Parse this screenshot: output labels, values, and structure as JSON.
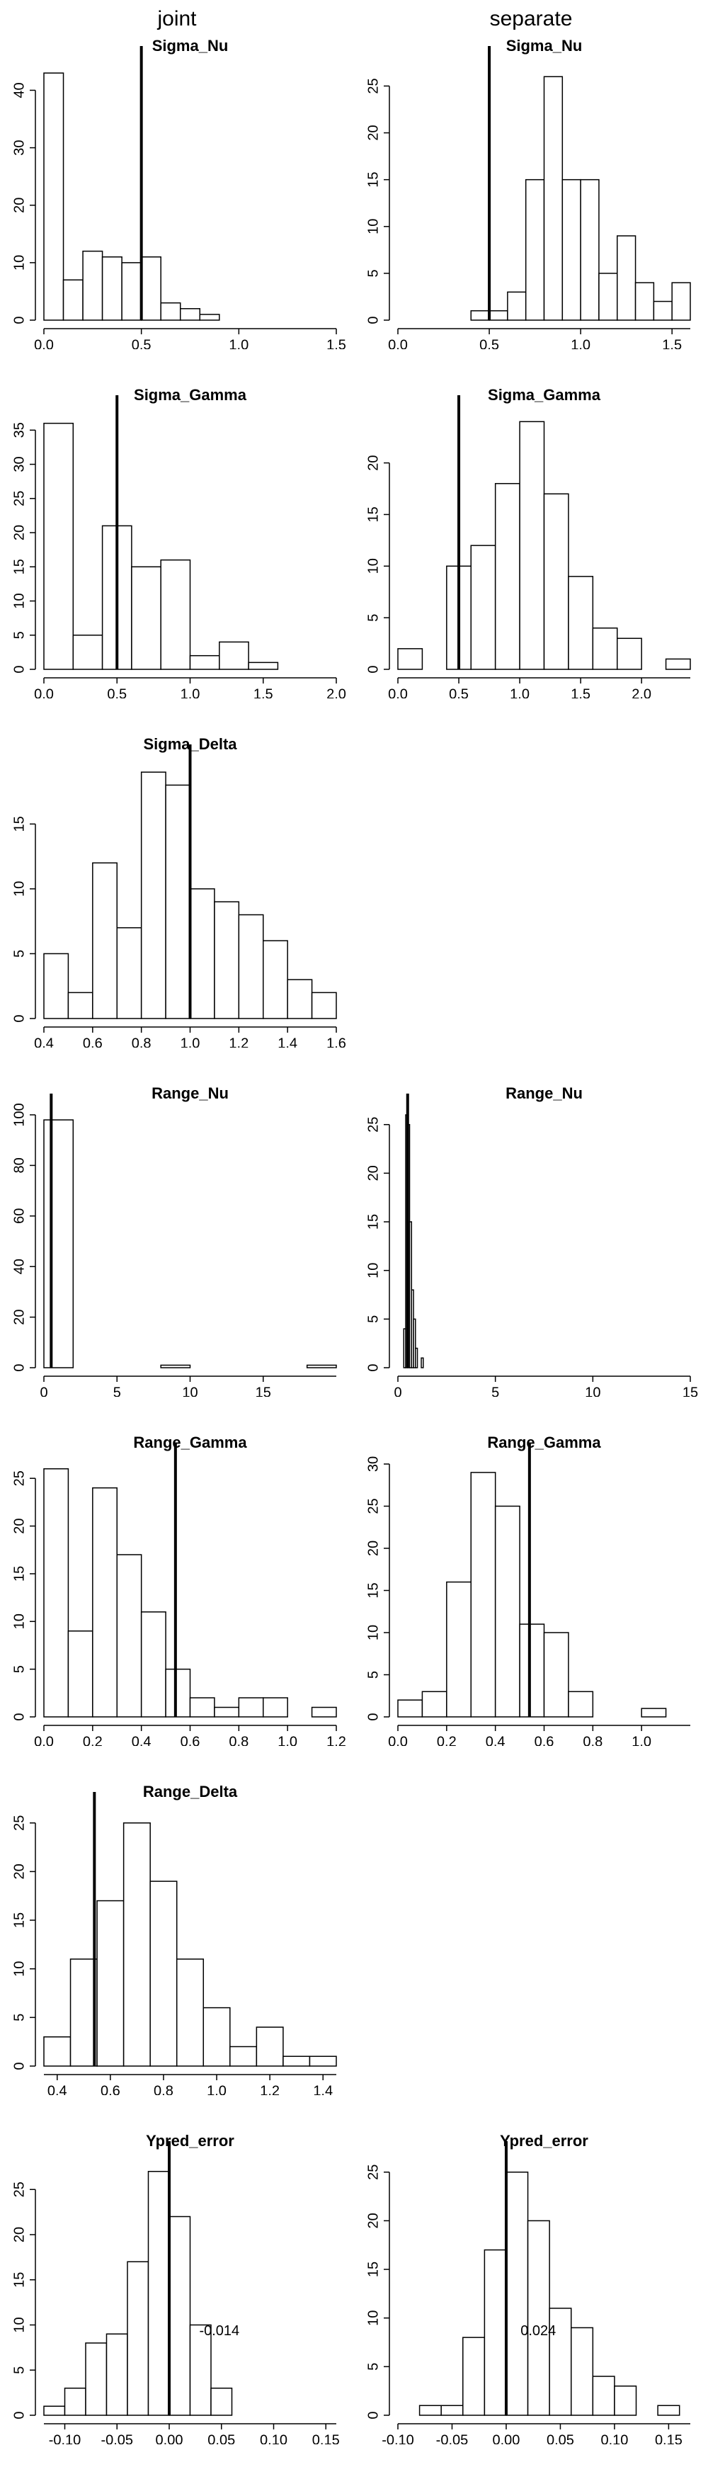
{
  "column_headers": [
    "joint",
    "separate"
  ],
  "chart_data": [
    {
      "type": "histogram",
      "title": "Sigma_Nu",
      "bins": [
        0,
        0.1,
        0.2,
        0.3,
        0.4,
        0.5,
        0.6,
        0.7,
        0.8,
        0.9
      ],
      "counts": [
        43,
        7,
        12,
        11,
        10,
        11,
        3,
        2,
        1
      ],
      "reference_line": 0.5,
      "xlim": [
        0,
        1.5
      ],
      "xticks": [
        {
          "value": 0,
          "label": "0.0"
        },
        0.5,
        {
          "value": 1,
          "label": "1.0"
        },
        1.5
      ],
      "ylim": [
        0,
        44
      ],
      "yticks": [
        0,
        10,
        20,
        30,
        40
      ]
    },
    {
      "type": "histogram",
      "title": "Sigma_Nu",
      "bins": [
        0.4,
        0.5,
        0.6,
        0.7,
        0.8,
        0.9,
        1.0,
        1.1,
        1.2,
        1.3,
        1.4,
        1.5,
        1.6
      ],
      "counts": [
        1,
        1,
        3,
        15,
        26,
        15,
        15,
        5,
        9,
        4,
        2,
        4
      ],
      "reference_line": 0.5,
      "xlim": [
        0,
        1.6
      ],
      "xticks": [
        {
          "value": 0,
          "label": "0.0"
        },
        0.5,
        {
          "value": 1,
          "label": "1.0"
        },
        1.5
      ],
      "ylim": [
        0,
        27
      ],
      "yticks": [
        0,
        5,
        10,
        15,
        20,
        25
      ]
    },
    {
      "type": "histogram",
      "title": "Sigma_Gamma",
      "bins": [
        0,
        0.2,
        0.4,
        0.6,
        0.8,
        1.0,
        1.2,
        1.4,
        1.6
      ],
      "counts": [
        36,
        5,
        21,
        15,
        16,
        2,
        4,
        1
      ],
      "reference_line": 0.5,
      "xlim": [
        0,
        2
      ],
      "xticks": [
        {
          "value": 0,
          "label": "0.0"
        },
        0.5,
        {
          "value": 1,
          "label": "1.0"
        },
        1.5,
        {
          "value": 2,
          "label": "2.0"
        }
      ],
      "ylim": [
        0,
        37
      ],
      "yticks": [
        0,
        5,
        10,
        15,
        20,
        25,
        30,
        35
      ]
    },
    {
      "type": "histogram",
      "title": "Sigma_Gamma",
      "bins": [
        0,
        0.2,
        0.4,
        0.6,
        0.8,
        1.0,
        1.2,
        1.4,
        1.6,
        1.8,
        2.0,
        2.2,
        2.4
      ],
      "counts": [
        2,
        0,
        10,
        12,
        18,
        24,
        17,
        9,
        4,
        3,
        0,
        1
      ],
      "reference_line": 0.5,
      "xlim": [
        0,
        2.4
      ],
      "xticks": [
        {
          "value": 0,
          "label": "0.0"
        },
        0.5,
        {
          "value": 1,
          "label": "1.0"
        },
        1.5,
        {
          "value": 2,
          "label": "2.0"
        }
      ],
      "ylim": [
        0,
        24.5
      ],
      "yticks": [
        0,
        5,
        10,
        15,
        20
      ]
    },
    {
      "type": "histogram",
      "title": "Sigma_Delta",
      "bins": [
        0.4,
        0.5,
        0.6,
        0.7,
        0.8,
        0.9,
        1.0,
        1.1,
        1.2,
        1.3,
        1.4,
        1.5,
        1.6
      ],
      "counts": [
        5,
        2,
        12,
        7,
        19,
        18,
        10,
        9,
        8,
        6,
        3,
        2
      ],
      "reference_line": 1,
      "xlim": [
        0.4,
        1.6
      ],
      "xticks": [
        0.4,
        0.6,
        0.8,
        {
          "value": 1,
          "label": "1.0"
        },
        1.2,
        1.4,
        1.6
      ],
      "ylim": [
        0,
        19.5
      ],
      "yticks": [
        0,
        5,
        10,
        15
      ]
    },
    {
      "type": "histogram",
      "title": "Range_Nu",
      "bins": [
        0,
        2,
        4,
        6,
        8,
        10,
        12,
        14,
        16,
        18,
        20
      ],
      "counts": [
        98,
        0,
        0,
        0,
        1,
        0,
        0,
        0,
        0,
        1
      ],
      "reference_line": 0.5,
      "xlim": [
        0,
        20
      ],
      "xticks": [
        0,
        5,
        10,
        15
      ],
      "ylim": [
        0,
        100
      ],
      "yticks": [
        0,
        20,
        40,
        60,
        80,
        100
      ]
    },
    {
      "type": "histogram",
      "title": "Range_Nu",
      "bins": [
        0.3,
        0.4,
        0.5,
        0.6,
        0.7,
        0.8,
        0.9,
        1.0,
        1.1,
        1.2,
        1.3
      ],
      "counts": [
        4,
        26,
        25,
        15,
        8,
        5,
        2,
        0,
        0,
        1
      ],
      "reference_line": 0.5,
      "xlim": [
        0,
        15
      ],
      "xticks": [
        0,
        5,
        10,
        15
      ],
      "ylim": [
        0,
        26
      ],
      "yticks": [
        0,
        5,
        10,
        15,
        20,
        25
      ]
    },
    {
      "type": "histogram",
      "title": "Range_Gamma",
      "bins": [
        0,
        0.1,
        0.2,
        0.3,
        0.4,
        0.5,
        0.6,
        0.7,
        0.8,
        0.9,
        1.0,
        1.1,
        1.2
      ],
      "counts": [
        26,
        9,
        24,
        17,
        11,
        5,
        2,
        1,
        2,
        2,
        0,
        1
      ],
      "reference_line": 0.54,
      "xlim": [
        0,
        1.2
      ],
      "xticks": [
        {
          "value": 0,
          "label": "0.0"
        },
        0.2,
        0.4,
        0.6,
        0.8,
        {
          "value": 1,
          "label": "1.0"
        },
        1.2
      ],
      "ylim": [
        0,
        26.5
      ],
      "yticks": [
        0,
        5,
        10,
        15,
        20,
        25
      ]
    },
    {
      "type": "histogram",
      "title": "Range_Gamma",
      "bins": [
        0,
        0.1,
        0.2,
        0.3,
        0.4,
        0.5,
        0.6,
        0.7,
        0.8,
        0.9,
        1.0,
        1.1
      ],
      "counts": [
        2,
        3,
        16,
        29,
        25,
        11,
        10,
        3,
        0,
        0,
        1
      ],
      "reference_line": 0.54,
      "xlim": [
        0,
        1.2
      ],
      "xticks": [
        {
          "value": 0,
          "label": "0.0"
        },
        0.2,
        0.4,
        0.6,
        0.8,
        {
          "value": 1,
          "label": "1.0"
        }
      ],
      "ylim": [
        0,
        30
      ],
      "yticks": [
        0,
        5,
        10,
        15,
        20,
        25,
        30
      ]
    },
    {
      "type": "histogram",
      "title": "Range_Delta",
      "bins": [
        0.35,
        0.45,
        0.55,
        0.65,
        0.75,
        0.85,
        0.95,
        1.05,
        1.15,
        1.25,
        1.35,
        1.45
      ],
      "counts": [
        3,
        11,
        17,
        25,
        19,
        11,
        6,
        2,
        4,
        1,
        1
      ],
      "reference_line": 0.54,
      "xlim": [
        0.35,
        1.45
      ],
      "xticks": [
        0.4,
        0.6,
        0.8,
        {
          "value": 1,
          "label": "1.0"
        },
        1.2,
        1.4
      ],
      "ylim": [
        0,
        26
      ],
      "yticks": [
        0,
        5,
        10,
        15,
        20,
        25
      ]
    },
    {
      "type": "histogram",
      "title": "Ypred_error",
      "bins": [
        -0.12,
        -0.1,
        -0.08,
        -0.06,
        -0.04,
        -0.02,
        0,
        0.02,
        0.04,
        0.06
      ],
      "counts": [
        1,
        3,
        8,
        9,
        17,
        27,
        22,
        10,
        3
      ],
      "reference_line": 0,
      "annotation": "-0.014",
      "xlim": [
        -0.12,
        0.16
      ],
      "xticks": [
        {
          "value": -0.1,
          "label": "-0.10"
        },
        -0.05,
        {
          "value": 0,
          "label": "0.00"
        },
        0.05,
        {
          "value": 0.1,
          "label": "0.10"
        },
        0.15
      ],
      "ylim": [
        0,
        28
      ],
      "yticks": [
        0,
        5,
        10,
        15,
        20,
        25
      ]
    },
    {
      "type": "histogram",
      "title": "Ypred_error",
      "bins": [
        -0.08,
        -0.06,
        -0.04,
        -0.02,
        0,
        0.02,
        0.04,
        0.06,
        0.08,
        0.1,
        0.12,
        0.14,
        0.16
      ],
      "counts": [
        1,
        1,
        8,
        17,
        25,
        20,
        11,
        9,
        4,
        3,
        0,
        1
      ],
      "reference_line": 0,
      "annotation": "0.024",
      "xlim": [
        -0.1,
        0.17
      ],
      "xticks": [
        {
          "value": -0.1,
          "label": "-0.10"
        },
        -0.05,
        {
          "value": 0,
          "label": "0.00"
        },
        0.05,
        {
          "value": 0.1,
          "label": "0.10"
        },
        0.15
      ],
      "ylim": [
        0,
        26
      ],
      "yticks": [
        0,
        5,
        10,
        15,
        20,
        25
      ]
    }
  ]
}
